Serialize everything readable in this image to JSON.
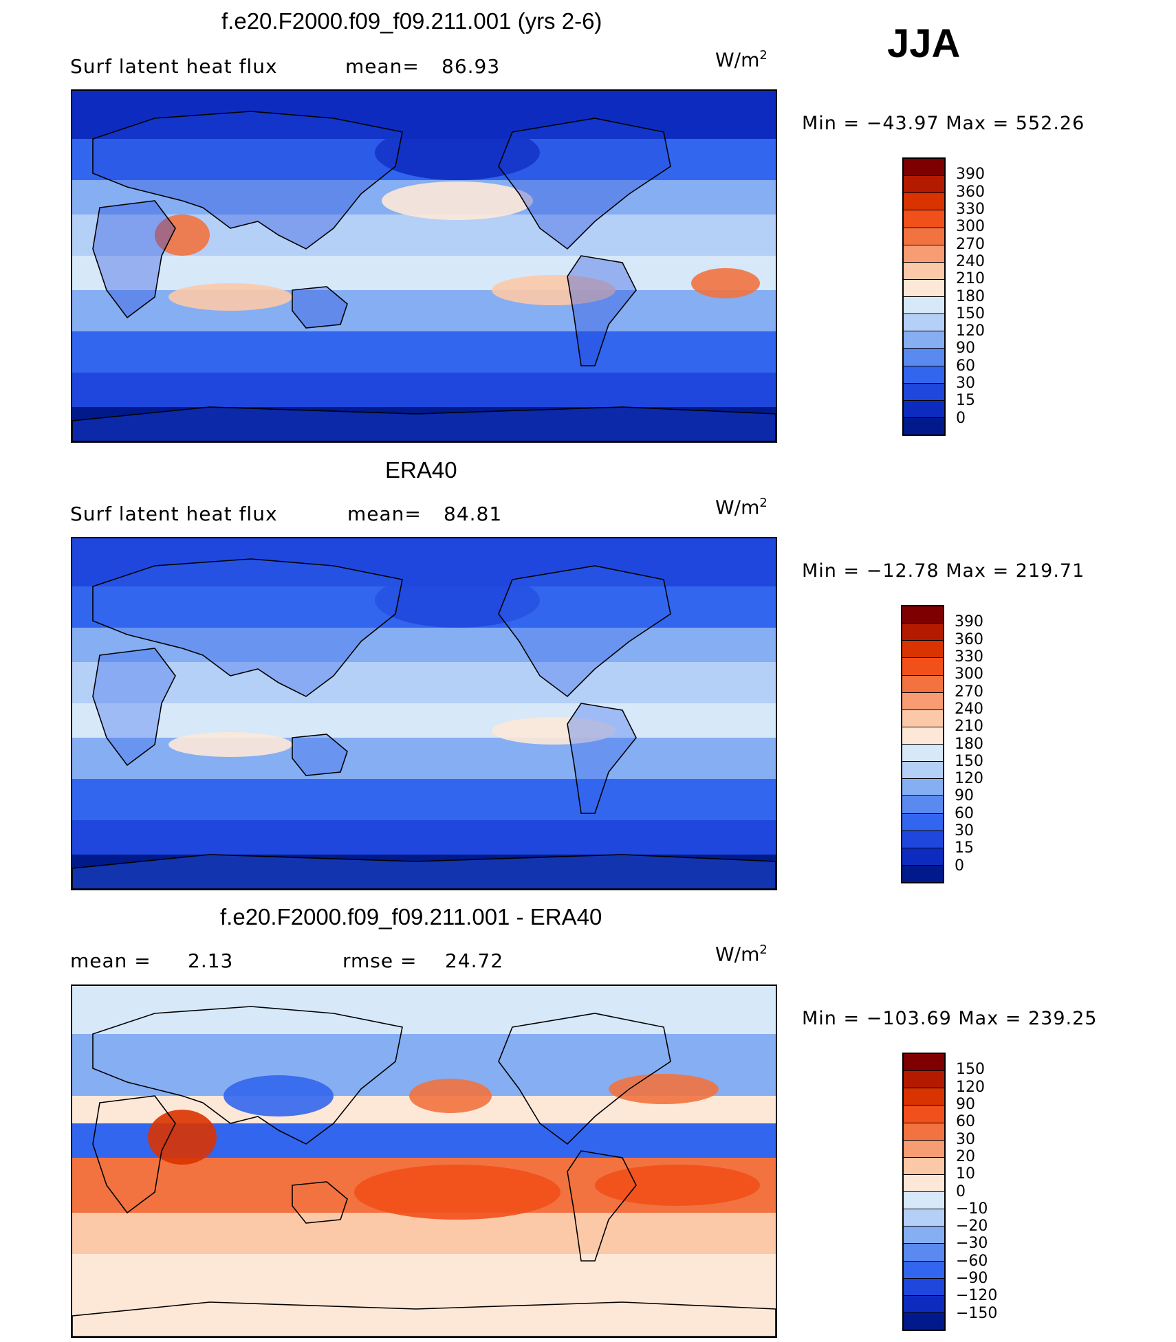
{
  "season": "JJA",
  "panels": [
    {
      "title": "f.e20.F2000.f09_f09.211.001 (yrs 2-6)",
      "left_label": "Surf latent heat flux",
      "stat_label": "mean=",
      "stat_value": "86.93",
      "unit": "W/m",
      "unit_exp": "2",
      "minmax": "Min = −43.97 Max = 552.26"
    },
    {
      "title": "ERA40",
      "left_label": "Surf latent heat flux",
      "stat_label": "mean=",
      "stat_value": "84.81",
      "unit": "W/m",
      "unit_exp": "2",
      "minmax": "Min = −12.78 Max = 219.71"
    },
    {
      "title": "f.e20.F2000.f09_f09.211.001 - ERA40",
      "left_label": "mean =",
      "left_value": "2.13",
      "stat_label": "rmse =",
      "stat_value": "24.72",
      "unit": "W/m",
      "unit_exp": "2",
      "minmax": "Min = −103.69 Max = 239.25"
    }
  ],
  "chart_data": [
    {
      "type": "heatmap",
      "title": "f.e20.F2000.f09_f09.211.001 (yrs 2-6)",
      "variable": "Surf latent heat flux",
      "units": "W/m2",
      "mean": 86.93,
      "min": -43.97,
      "max": 552.26,
      "colorbar_levels": [
        "390",
        "360",
        "330",
        "300",
        "270",
        "240",
        "210",
        "180",
        "150",
        "120",
        "90",
        "60",
        "30",
        "15",
        "0"
      ],
      "colors": [
        "#7f0000",
        "#b31a00",
        "#d93300",
        "#f2501a",
        "#f27340",
        "#f79c73",
        "#fcc9a8",
        "#fde8d8",
        "#d7e8f9",
        "#b5d0f7",
        "#86aef2",
        "#5a8aef",
        "#3366ee",
        "#1f47dd",
        "#0d2cbf",
        "#001a8c"
      ]
    },
    {
      "type": "heatmap",
      "title": "ERA40",
      "variable": "Surf latent heat flux",
      "units": "W/m2",
      "mean": 84.81,
      "min": -12.78,
      "max": 219.71,
      "colorbar_levels": [
        "390",
        "360",
        "330",
        "300",
        "270",
        "240",
        "210",
        "180",
        "150",
        "120",
        "90",
        "60",
        "30",
        "15",
        "0"
      ],
      "colors": [
        "#7f0000",
        "#b31a00",
        "#d93300",
        "#f2501a",
        "#f27340",
        "#f79c73",
        "#fcc9a8",
        "#fde8d8",
        "#d7e8f9",
        "#b5d0f7",
        "#86aef2",
        "#5a8aef",
        "#3366ee",
        "#1f47dd",
        "#0d2cbf",
        "#001a8c"
      ]
    },
    {
      "type": "heatmap",
      "title": "f.e20.F2000.f09_f09.211.001 - ERA40",
      "units": "W/m2",
      "mean": 2.13,
      "rmse": 24.72,
      "min": -103.69,
      "max": 239.25,
      "colorbar_levels": [
        "150",
        "120",
        "90",
        "60",
        "30",
        "20",
        "10",
        "0",
        "−10",
        "−20",
        "−30",
        "−60",
        "−90",
        "−120",
        "−150"
      ],
      "colors": [
        "#7f0000",
        "#b31a00",
        "#d93300",
        "#f2501a",
        "#f27340",
        "#f79c73",
        "#fcc9a8",
        "#fde8d8",
        "#d7e8f9",
        "#b5d0f7",
        "#86aef2",
        "#5a8aef",
        "#3366ee",
        "#1f47dd",
        "#0d2cbf",
        "#001a8c"
      ]
    }
  ]
}
